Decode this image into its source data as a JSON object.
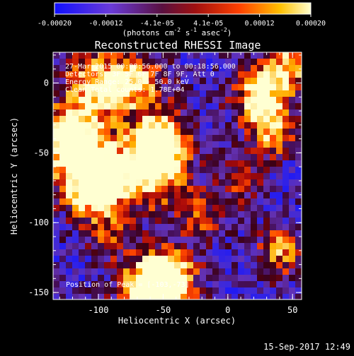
{
  "colorbar": {
    "ticks": [
      "-0.00020",
      "-0.00012",
      "-4.1e-05",
      "4.1e-05",
      "0.00012",
      "0.00020"
    ],
    "unit_prefix": "(photons cm",
    "unit_exp1": "-2",
    "unit_mid": " s",
    "unit_exp2": "-1",
    "unit_mid2": " asec",
    "unit_exp3": "-2",
    "unit_suffix": ")",
    "colors": [
      "#0000ff",
      "#8a2be2",
      "#8b0000",
      "#ff4500",
      "#ffa500",
      "#ffffc0"
    ]
  },
  "plot": {
    "title": "Reconstructed RHESSI Image",
    "xlabel": "Heliocentric X (arcsec)",
    "ylabel": "Heliocentric Y (arcsec)",
    "xticks": [
      "-100",
      "-50",
      "0",
      "50"
    ],
    "yticks": [
      "0",
      "-50",
      "-100",
      "-150"
    ],
    "xlim": [
      -135,
      57
    ],
    "ylim": [
      -155,
      22
    ]
  },
  "info": {
    "line1": "27-Mar-2015 00:08:56.000 to 00:18:56.000",
    "line2": "Detectors: 3F 5F 6F 7F 8F 9F, Att 0",
    "line3": "Energy Range: 25.0 - 50.0 keV",
    "line4": "Clean    Total counts: 1.78E+04"
  },
  "peak": {
    "label": "Position of Peak = [-103,-73]",
    "x": -103,
    "y": -73
  },
  "footer": {
    "timestamp": "15-Sep-2017 12:49"
  }
}
